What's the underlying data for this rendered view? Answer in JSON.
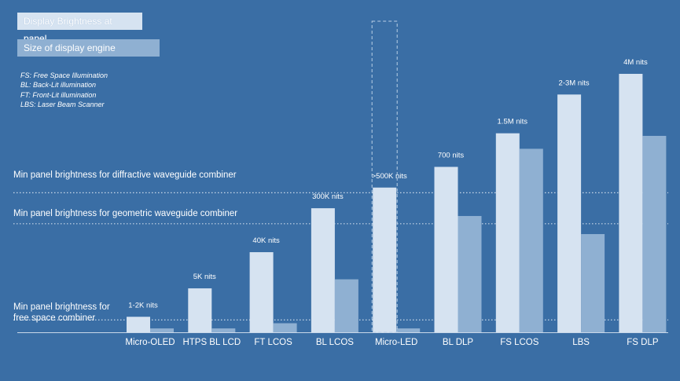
{
  "legend": [
    {
      "label": "Display Brightness at panel",
      "color": "#d6e3f1"
    },
    {
      "label": "Size of display engine",
      "color": "#8fb0d2"
    }
  ],
  "abbreviations": [
    "FS: Free Space Illumination",
    "BL: Back-Lit illumination",
    "FT: Front-Lit illumination",
    "LBS: Laser Beam Scanner"
  ],
  "chart_data": {
    "type": "bar",
    "categories": [
      "Micro-OLED",
      "HTPS BL LCD",
      "FT LCOS",
      "BL LCOS",
      "Micro-LED",
      "BL DLP",
      "FS LCOS",
      "LBS",
      "FS DLP"
    ],
    "series": [
      {
        "name": "Display Brightness at panel",
        "color": "#d6e3f1",
        "values": [
          6,
          17,
          31,
          48,
          56,
          64,
          77,
          92,
          100
        ]
      },
      {
        "name": "Size of display engine",
        "color": "#8fb0d2",
        "values": [
          1.5,
          1.5,
          3.5,
          20.5,
          1.5,
          45,
          71,
          38,
          76
        ]
      }
    ],
    "bar_labels": [
      "1-2K  nits",
      "5K nits",
      "40K  nits",
      "300K  nits",
      ">500K nits",
      "700 nits",
      "1.5M nits",
      "2-3M nits",
      "4M nits"
    ],
    "ylim": [
      0,
      100
    ],
    "thresholds": [
      {
        "label": "Min panel brightness for diffractive waveguide combiner",
        "value": 54
      },
      {
        "label": "Min panel brightness for geometric waveguide combiner",
        "value": 42
      },
      {
        "label": "Min panel brightness for free space combiner",
        "value": 6
      }
    ],
    "highlight_category": "Micro-LED"
  }
}
